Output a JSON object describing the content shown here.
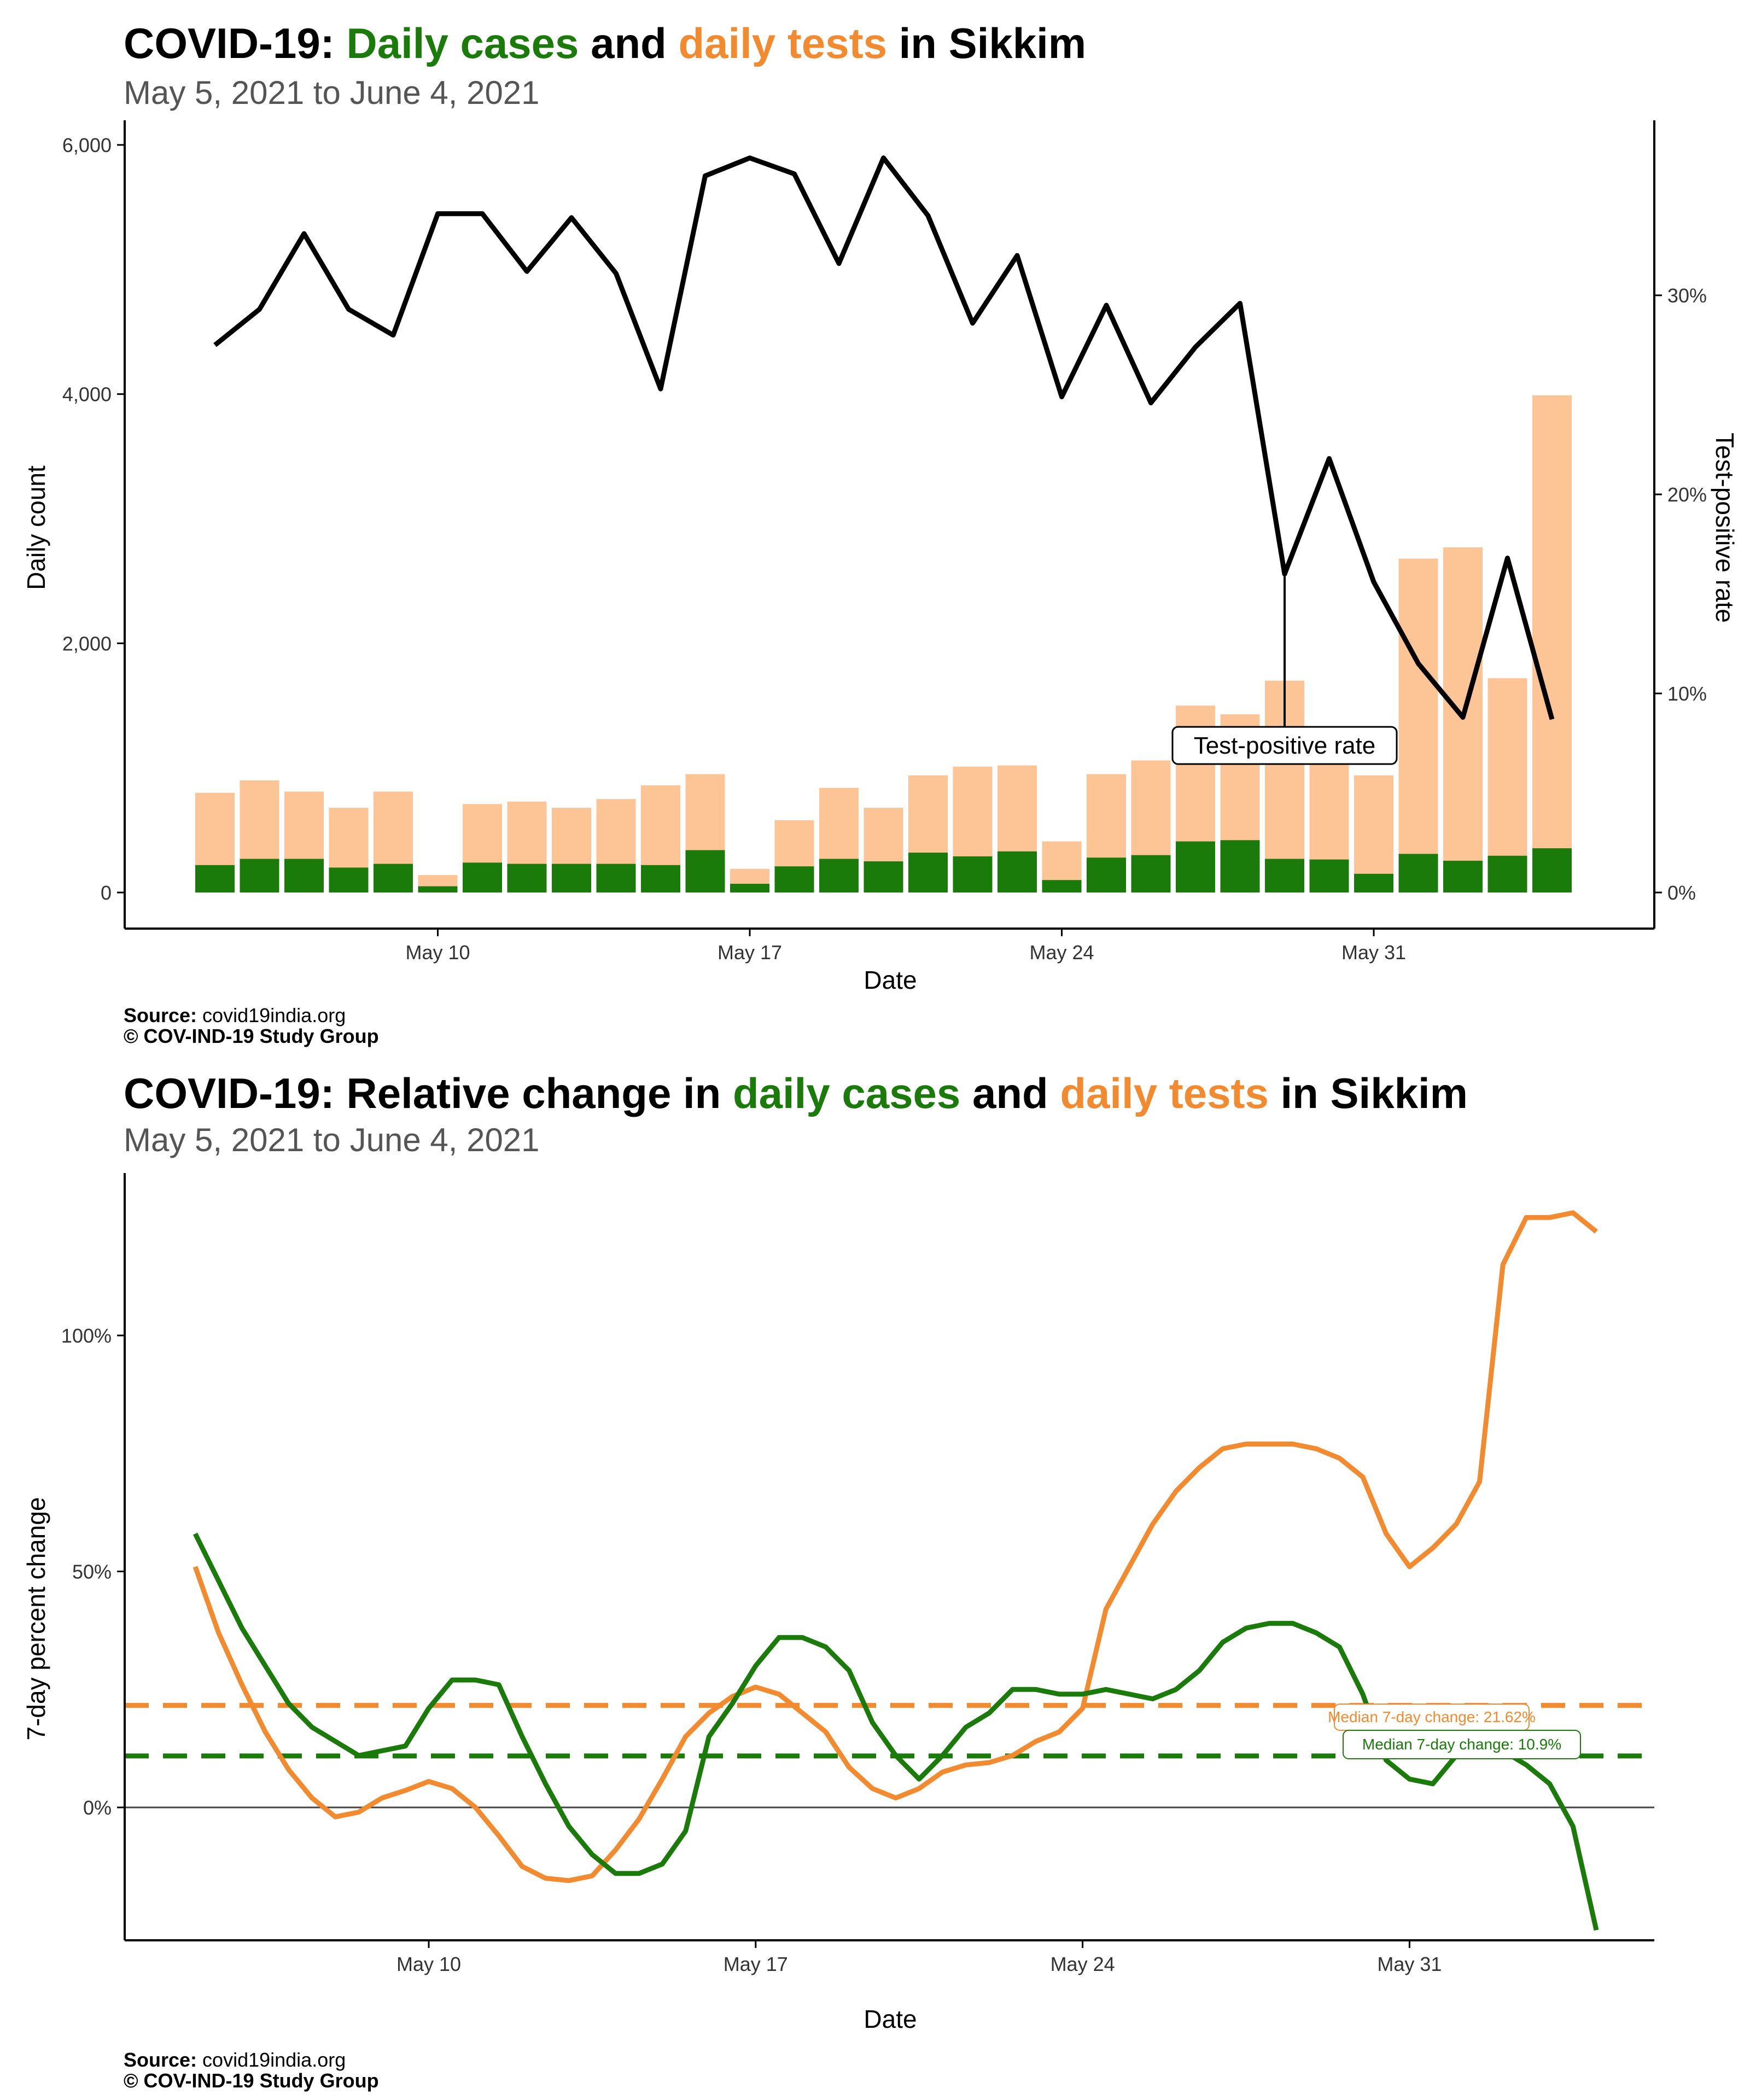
{
  "colors": {
    "cases": "#1a7a0a",
    "tests": "#fdc496",
    "tests_line": "#f28a30",
    "tpr": "#000000",
    "subtitle": "#555555"
  },
  "panel_top": {
    "title_prefix": "COVID-19: ",
    "title_cases": "Daily cases",
    "title_and": " and ",
    "title_tests": "daily tests",
    "title_suffix": " in Sikkim",
    "subtitle": "May  5, 2021 to June  4, 2021",
    "source_label": "Source:",
    "source_value": " covid19india.org",
    "copyright": "© COV-IND-19 Study Group"
  },
  "panel_bottom": {
    "title_prefix": "COVID-19: Relative change in ",
    "title_cases": "daily cases",
    "title_and": " and ",
    "title_tests": "daily tests",
    "title_suffix": " in Sikkim",
    "subtitle": "May  5, 2021 to June  4, 2021",
    "source_label": "Source:",
    "source_value": " covid19india.org",
    "copyright": "© COV-IND-19 Study Group"
  },
  "chart_data": [
    {
      "type": "bar",
      "xlabel": "Date",
      "ylabel": "Daily count",
      "y2label": "Test-positive rate",
      "ylim": [
        0,
        6200
      ],
      "y2lim": [
        0,
        38
      ],
      "x_ticks": [
        "May 10",
        "May 17",
        "May 24",
        "May 31"
      ],
      "x_tick_days": [
        5,
        12,
        19,
        26
      ],
      "y_ticks": [
        "0",
        "2,000",
        "4,000",
        "6,000"
      ],
      "y_tick_values": [
        0,
        2000,
        4000,
        6000
      ],
      "y2_ticks": [
        "0%",
        "10%",
        "20%",
        "30%"
      ],
      "y2_tick_values": [
        0,
        10,
        20,
        30
      ],
      "grid": false,
      "annotation": "Test-positive rate",
      "annotation_day": 24,
      "annotation_value": 1180,
      "categories": [
        "May 5",
        "May 6",
        "May 7",
        "May 8",
        "May 9",
        "May 10",
        "May 11",
        "May 12",
        "May 13",
        "May 14",
        "May 15",
        "May 16",
        "May 17",
        "May 18",
        "May 19",
        "May 20",
        "May 21",
        "May 22",
        "May 23",
        "May 24",
        "May 25",
        "May 26",
        "May 27",
        "May 28",
        "May 29",
        "May 30",
        "May 31",
        "Jun 1",
        "Jun 2",
        "Jun 3",
        "Jun 4"
      ],
      "series": [
        {
          "name": "daily tests",
          "type": "bar",
          "values": [
            800,
            900,
            810,
            680,
            810,
            140,
            710,
            730,
            680,
            750,
            860,
            950,
            190,
            580,
            840,
            680,
            940,
            1010,
            1020,
            410,
            950,
            1060,
            1500,
            1430,
            1700,
            1110,
            940,
            2680,
            2770,
            1720,
            3990
          ]
        },
        {
          "name": "daily cases",
          "type": "bar",
          "values": [
            220,
            270,
            270,
            200,
            230,
            50,
            240,
            230,
            230,
            230,
            220,
            340,
            70,
            210,
            270,
            250,
            320,
            290,
            330,
            100,
            280,
            300,
            410,
            420,
            270,
            265,
            150,
            310,
            255,
            295,
            355
          ]
        },
        {
          "name": "Test-positive rate",
          "type": "line",
          "values": [
            27.5,
            29.3,
            33.1,
            29.3,
            28.0,
            34.1,
            34.1,
            31.2,
            33.9,
            31.1,
            25.3,
            36.0,
            36.9,
            36.1,
            31.6,
            36.9,
            34.0,
            28.6,
            32.0,
            24.9,
            29.5,
            24.6,
            27.4,
            29.6,
            16.0,
            21.8,
            15.6,
            11.5,
            8.8,
            16.8,
            8.7
          ]
        }
      ]
    },
    {
      "type": "line",
      "xlabel": "Date",
      "ylabel": "7-day percent change",
      "ylim": [
        -26,
        134
      ],
      "x_ticks": [
        "May 10",
        "May 17",
        "May 24",
        "May 31"
      ],
      "x_tick_days": [
        5,
        12,
        19,
        26
      ],
      "y_ticks": [
        "0%",
        "50%",
        "100%"
      ],
      "y_tick_values": [
        0,
        50,
        100
      ],
      "grid": false,
      "series": [
        {
          "name": "daily tests",
          "x": [
            0,
            0.5,
            1,
            1.5,
            2,
            2.5,
            3,
            3.5,
            4,
            4.5,
            5,
            5.5,
            6,
            6.5,
            7,
            7.5,
            8,
            8.5,
            9,
            9.5,
            10,
            10.5,
            11,
            11.5,
            12,
            12.5,
            13,
            13.5,
            14,
            14.5,
            15,
            15.5,
            16,
            16.5,
            17,
            17.5,
            18,
            18.5,
            19,
            19.5,
            20,
            20.5,
            21,
            21.5,
            22,
            22.5,
            23,
            23.5,
            24,
            24.5,
            25,
            25.5,
            26,
            26.5,
            27,
            27.5,
            28,
            28.5,
            29,
            29.5,
            30
          ],
          "values": [
            51,
            37,
            26,
            16,
            8,
            2,
            -2,
            -1,
            2,
            3.6,
            5.5,
            4,
            0,
            -6,
            -12.5,
            -15,
            -15.5,
            -14.5,
            -9,
            -2.5,
            6,
            15,
            20,
            23.5,
            25.5,
            24,
            20,
            16,
            8.5,
            4,
            2,
            4,
            7.5,
            9,
            9.5,
            11,
            14,
            16,
            21,
            42,
            51,
            60,
            67,
            72,
            76,
            77,
            77,
            77,
            76,
            74,
            70,
            58,
            51,
            55,
            60,
            69,
            115,
            125,
            125,
            126,
            122
          ]
        },
        {
          "name": "daily cases",
          "x": [
            0,
            0.5,
            1,
            1.5,
            2,
            2.5,
            3,
            3.5,
            4,
            4.5,
            5,
            5.5,
            6,
            6.5,
            7,
            7.5,
            8,
            8.5,
            9,
            9.5,
            10,
            10.5,
            11,
            11.5,
            12,
            12.5,
            13,
            13.5,
            14,
            14.5,
            15,
            15.5,
            16,
            16.5,
            17,
            17.5,
            18,
            18.5,
            19,
            19.5,
            20,
            20.5,
            21,
            21.5,
            22,
            22.5,
            23,
            23.5,
            24,
            24.5,
            25,
            25.5,
            26,
            26.5,
            27,
            27.5,
            28,
            28.5,
            29,
            29.5,
            30
          ],
          "values": [
            58,
            48,
            38,
            30,
            22,
            17,
            14,
            11,
            12,
            13,
            21,
            27,
            27,
            26,
            15,
            5,
            -4,
            -10,
            -14,
            -14,
            -12,
            -5,
            15,
            22,
            30,
            36,
            36,
            34,
            29,
            18,
            11,
            6,
            11,
            17,
            20,
            25,
            25,
            24,
            24,
            25,
            24,
            23,
            25,
            29,
            35,
            38,
            39,
            39,
            37,
            34,
            24,
            10,
            6,
            5,
            11,
            13,
            12,
            9,
            5,
            -4,
            -26
          ]
        }
      ],
      "reference_lines": [
        {
          "name": "tests median",
          "value": 21.62,
          "label": "Median 7-day change: 21.62%"
        },
        {
          "name": "cases median",
          "value": 10.9,
          "label": "Median 7-day change: 10.9%"
        }
      ]
    }
  ]
}
